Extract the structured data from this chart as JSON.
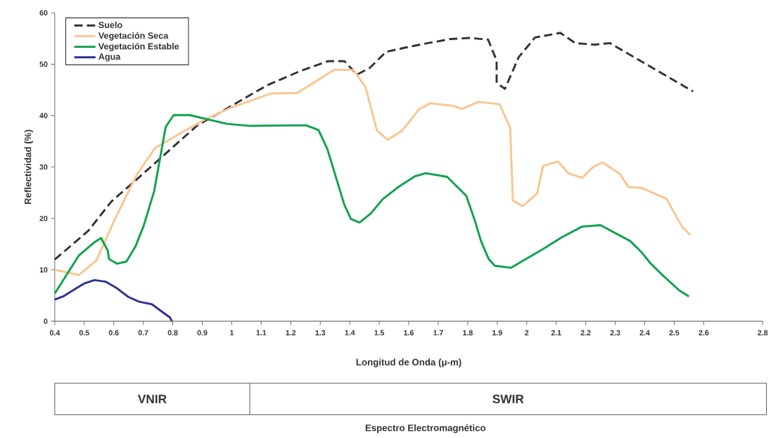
{
  "chart_data": {
    "type": "line",
    "xlabel": "Longitud de Onda (μ-m)",
    "ylabel": "Reflectividad (%)",
    "xlim": [
      0.4,
      2.8
    ],
    "ylim": [
      0,
      60
    ],
    "xticks": [
      0.4,
      0.5,
      0.6,
      0.7,
      0.8,
      0.9,
      1,
      1.1,
      1.2,
      1.3,
      1.4,
      1.5,
      1.6,
      1.7,
      1.8,
      1.9,
      2,
      2.1,
      2.2,
      2.3,
      2.4,
      2.5,
      2.6,
      2.8
    ],
    "yticks": [
      0,
      10,
      20,
      30,
      40,
      50,
      60
    ],
    "legend": "top left",
    "grid": false,
    "marker": "none",
    "annotations": [
      "VNIR",
      "SWIR",
      "Espectro Electromagnético"
    ],
    "series": [
      {
        "name": "Suelo",
        "color": "#333333",
        "line_style": "dashed",
        "x": [
          0.4,
          0.514,
          0.592,
          0.686,
          0.881,
          0.999,
          1.12,
          1.233,
          1.327,
          1.382,
          1.425,
          1.468,
          1.523,
          1.585,
          1.664,
          1.742,
          1.805,
          1.869,
          1.898,
          1.898,
          1.926,
          1.973,
          2.028,
          2.114,
          2.165,
          2.231,
          2.282,
          2.564
        ],
        "values": [
          12.0,
          17.6,
          23.3,
          28.0,
          38.0,
          41.9,
          45.9,
          48.7,
          50.6,
          50.6,
          48.0,
          49.3,
          52.4,
          53.2,
          54.1,
          54.9,
          55.1,
          54.8,
          50.7,
          46.4,
          45.2,
          51.4,
          55.2,
          56.1,
          54.1,
          53.8,
          54.1,
          44.7
        ]
      },
      {
        "name": "Vegetación Seca",
        "color": "#fbc58d",
        "line_style": "solid",
        "x": [
          0.4,
          0.482,
          0.541,
          0.6,
          0.678,
          0.74,
          0.827,
          0.905,
          0.999,
          1.132,
          1.222,
          1.347,
          1.413,
          1.454,
          1.492,
          1.529,
          1.578,
          1.636,
          1.673,
          1.75,
          1.781,
          1.836,
          1.908,
          1.944,
          1.953,
          1.986,
          2.035,
          2.055,
          2.106,
          2.141,
          2.188,
          2.227,
          2.257,
          2.315,
          2.345,
          2.392,
          2.474,
          2.525,
          2.554
        ],
        "values": [
          10.0,
          9.0,
          11.8,
          19.4,
          28.5,
          33.7,
          36.6,
          39.1,
          41.6,
          44.3,
          44.4,
          48.9,
          48.9,
          45.5,
          37.1,
          35.3,
          37.1,
          41.3,
          42.4,
          41.9,
          41.3,
          42.7,
          42.2,
          37.6,
          23.5,
          22.4,
          24.8,
          30.2,
          31.1,
          28.8,
          27.9,
          30.1,
          30.9,
          28.7,
          26.1,
          25.9,
          23.8,
          18.5,
          16.8
        ]
      },
      {
        "name": "Vegetación Estable",
        "color": "#0ea24e",
        "line_style": "solid",
        "x": [
          0.4,
          0.482,
          0.533,
          0.557,
          0.58,
          0.584,
          0.611,
          0.643,
          0.674,
          0.701,
          0.737,
          0.776,
          0.803,
          0.858,
          0.983,
          1.061,
          1.2,
          1.253,
          1.294,
          1.324,
          1.382,
          1.404,
          1.433,
          1.472,
          1.511,
          1.562,
          1.621,
          1.658,
          1.73,
          1.795,
          1.824,
          1.845,
          1.871,
          1.892,
          1.947,
          2.063,
          2.118,
          2.187,
          2.25,
          2.351,
          2.388,
          2.419,
          2.458,
          2.517,
          2.55
        ],
        "values": [
          5.4,
          12.8,
          15.3,
          16.2,
          13.7,
          12.1,
          11.2,
          11.6,
          14.6,
          18.5,
          25.3,
          37.8,
          40.1,
          40.1,
          38.4,
          38.0,
          38.1,
          38.1,
          37.2,
          33.5,
          22.6,
          19.9,
          19.2,
          21.0,
          23.7,
          26.0,
          28.2,
          28.8,
          28.1,
          24.4,
          19.6,
          15.6,
          12.1,
          10.8,
          10.4,
          14.3,
          16.3,
          18.4,
          18.7,
          15.6,
          13.5,
          11.3,
          9.1,
          6.0,
          4.8
        ]
      },
      {
        "name": "Agua",
        "color": "#2e3192",
        "line_style": "solid",
        "x": [
          0.4,
          0.431,
          0.47,
          0.502,
          0.535,
          0.572,
          0.611,
          0.65,
          0.686,
          0.729,
          0.791,
          0.797
        ],
        "values": [
          4.2,
          4.9,
          6.3,
          7.4,
          8.0,
          7.7,
          6.4,
          4.7,
          3.8,
          3.3,
          0.7,
          0
        ]
      }
    ]
  }
}
